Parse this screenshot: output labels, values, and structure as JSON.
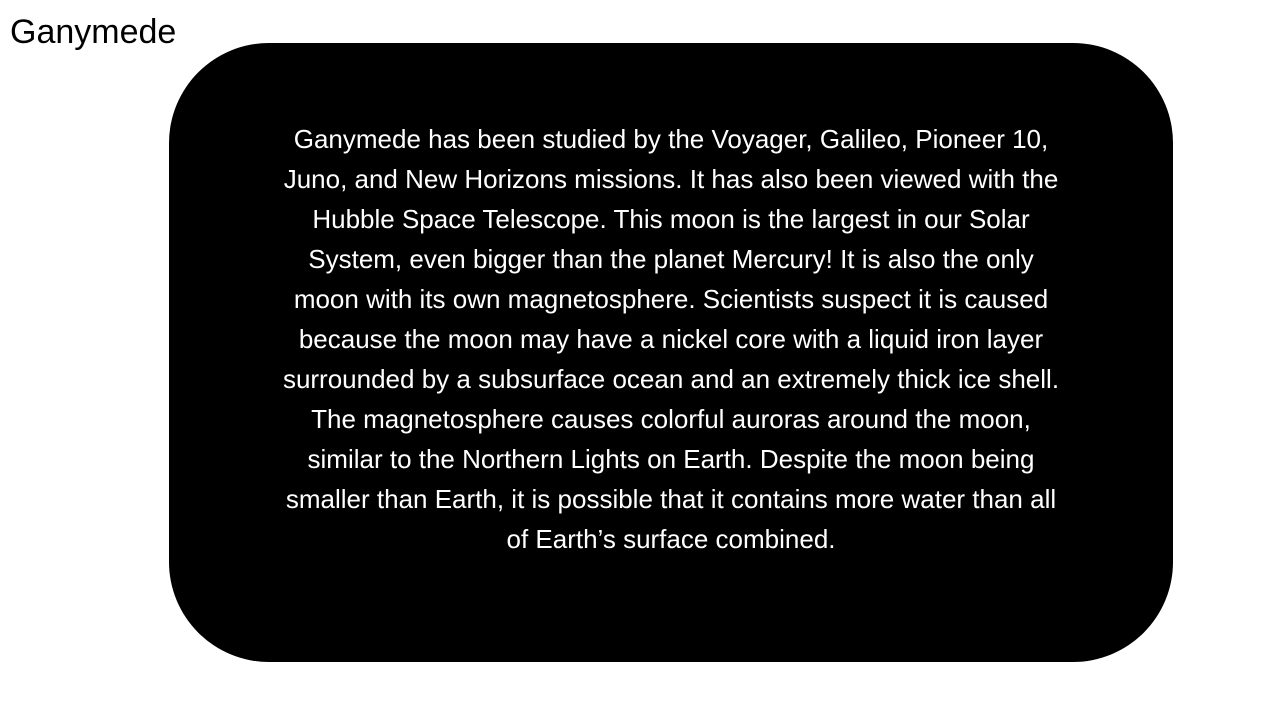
{
  "slide": {
    "title": "Ganymede",
    "body": "Ganymede has been studied by the Voyager, Galileo, Pioneer 10,\nJuno, and New Horizons missions.  It has also been viewed with the\nHubble Space Telescope. This moon is the largest in our Solar\nSystem, even bigger than the planet Mercury! It is also the only\nmoon with its own magnetosphere. Scientists suspect it is caused\nbecause the moon may have a nickel core with a liquid iron layer\nsurrounded by a subsurface ocean and an extremely thick ice shell.\nThe magnetosphere causes colorful auroras around the moon,\nsimilar to the Northern Lights on Earth. Despite the moon being\nsmaller than Earth, it is possible that it contains more water than all\nof Earth’s surface combined."
  },
  "colors": {
    "background": "#ffffff",
    "box_fill": "#000000",
    "box_text": "#ffffff",
    "title_text": "#000000"
  }
}
